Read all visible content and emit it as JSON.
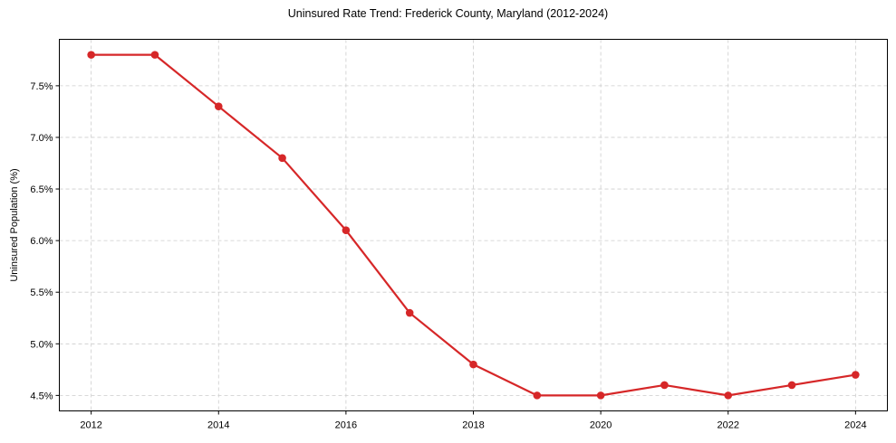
{
  "chart_data": {
    "type": "line",
    "title": "Uninsured Rate Trend: Frederick County, Maryland (2012-2024)",
    "xlabel": "",
    "ylabel": "Uninsured Population (%)",
    "x": [
      2012,
      2013,
      2014,
      2015,
      2016,
      2017,
      2018,
      2019,
      2020,
      2021,
      2022,
      2023,
      2024
    ],
    "series": [
      {
        "name": "Uninsured Rate",
        "values": [
          7.8,
          7.8,
          7.3,
          6.8,
          6.1,
          5.3,
          4.8,
          4.5,
          4.5,
          4.6,
          4.5,
          4.6,
          4.7
        ],
        "color": "#d62728",
        "marker": "circle"
      }
    ],
    "xticks": [
      2012,
      2014,
      2016,
      2018,
      2020,
      2022,
      2024
    ],
    "yticks": [
      4.5,
      5.0,
      5.5,
      6.0,
      6.5,
      7.0,
      7.5
    ],
    "ytick_labels": [
      "4.5%",
      "5.0%",
      "5.5%",
      "6.0%",
      "6.5%",
      "7.0%",
      "7.5%"
    ],
    "xlim": [
      2011.5,
      2024.5
    ],
    "ylim": [
      4.35,
      7.95
    ],
    "grid": true,
    "grid_style": "dashed",
    "legend": false
  }
}
